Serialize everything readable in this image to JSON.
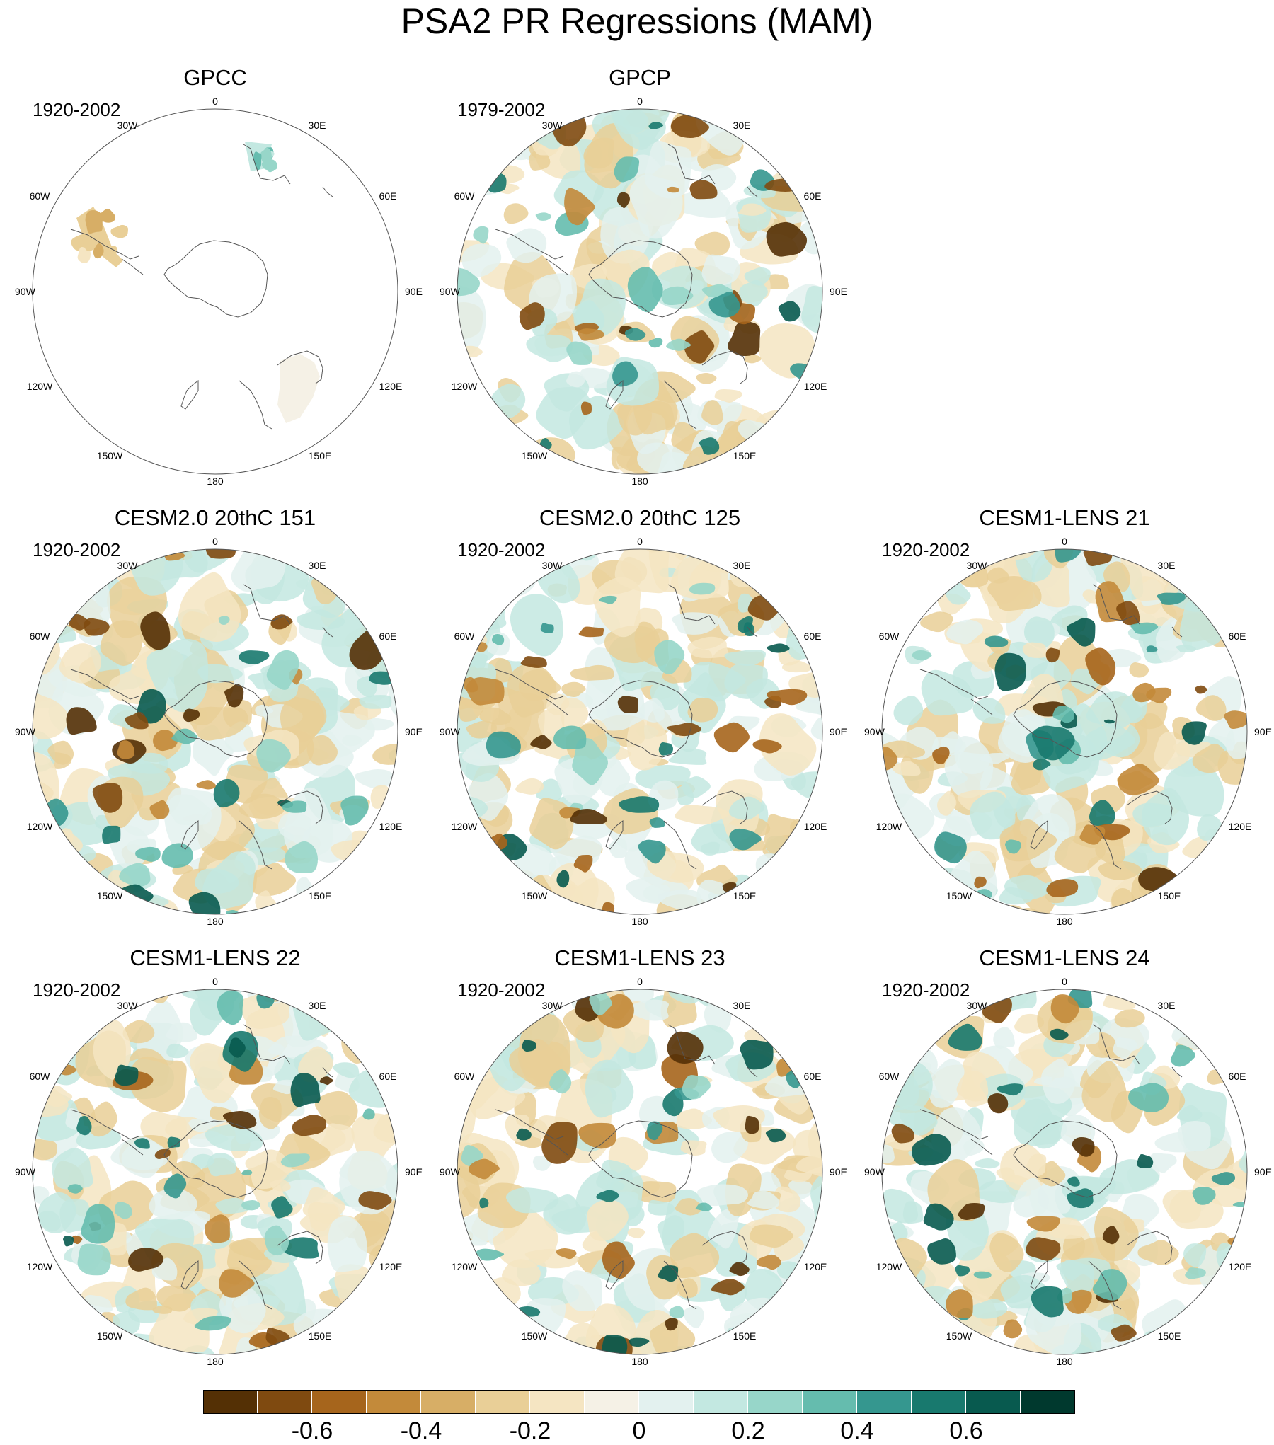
{
  "title": "PSA2 PR Regressions (MAM)",
  "map_labels": {
    "top": "0",
    "bottom": "180",
    "l30": "30W",
    "l60": "60W",
    "l90": "90W",
    "l120": "120W",
    "l150": "150W",
    "r30": "30E",
    "r60": "60E",
    "r90": "90E",
    "r120": "120E",
    "r150": "150E"
  },
  "panels": [
    {
      "title": "GPCC",
      "years": "1920-2002",
      "coverage": "land-only"
    },
    {
      "title": "GPCP",
      "years": "1979-2002",
      "coverage": "global"
    },
    {
      "title": "CESM2.0 20thC 151",
      "years": "1920-2002",
      "coverage": "global"
    },
    {
      "title": "CESM2.0 20thC 125",
      "years": "1920-2002",
      "coverage": "global"
    },
    {
      "title": "CESM1-LENS 21",
      "years": "1920-2002",
      "coverage": "global"
    },
    {
      "title": "CESM1-LENS 22",
      "years": "1920-2002",
      "coverage": "global"
    },
    {
      "title": "CESM1-LENS 23",
      "years": "1920-2002",
      "coverage": "global"
    },
    {
      "title": "CESM1-LENS 24",
      "years": "1920-2002",
      "coverage": "global"
    }
  ],
  "colorbar": {
    "colors": [
      "#543005",
      "#7f4a10",
      "#a6651c",
      "#c38a3a",
      "#d7ae66",
      "#e9cf97",
      "#f5e5c2",
      "#f5f1e6",
      "#e3f1ef",
      "#c3e8e1",
      "#97d6c9",
      "#65bcae",
      "#35978f",
      "#18796e",
      "#085a4f",
      "#00392e"
    ],
    "tick_labels": [
      "-0.6",
      "-0.4",
      "-0.2",
      "0",
      "0.2",
      "0.4",
      "0.6"
    ]
  }
}
